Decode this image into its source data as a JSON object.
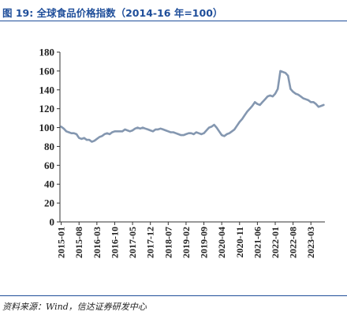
{
  "figure": {
    "title": "图 19:  全球食品价格指数（2014-16 年=100）",
    "source": "资料来源：Wind，信达证券研发中心"
  },
  "colors": {
    "accent": "#1f4e9a",
    "series": "#8497b0",
    "axis": "#333333"
  },
  "chart_data": {
    "type": "line",
    "title": "全球食品价格指数（2014-16 年=100）",
    "xlabel": "",
    "ylabel": "",
    "ylim": [
      0,
      180
    ],
    "yticks": [
      0,
      20,
      40,
      60,
      80,
      100,
      120,
      140,
      160,
      180
    ],
    "grid": false,
    "legend": "none",
    "x_tick_labels": [
      "2015-01",
      "2015-08",
      "2016-03",
      "2016-10",
      "2017-05",
      "2017-12",
      "2018-07",
      "2019-02",
      "2019-09",
      "2020-04",
      "2020-11",
      "2021-06",
      "2022-01",
      "2022-08",
      "2023-03"
    ],
    "series": [
      {
        "name": "",
        "x": [
          "2015-01",
          "2015-02",
          "2015-03",
          "2015-04",
          "2015-05",
          "2015-06",
          "2015-07",
          "2015-08",
          "2015-09",
          "2015-10",
          "2015-11",
          "2015-12",
          "2016-01",
          "2016-02",
          "2016-03",
          "2016-04",
          "2016-05",
          "2016-06",
          "2016-07",
          "2016-08",
          "2016-09",
          "2016-10",
          "2016-11",
          "2016-12",
          "2017-01",
          "2017-02",
          "2017-03",
          "2017-04",
          "2017-05",
          "2017-06",
          "2017-07",
          "2017-08",
          "2017-09",
          "2017-10",
          "2017-11",
          "2017-12",
          "2018-01",
          "2018-02",
          "2018-03",
          "2018-04",
          "2018-05",
          "2018-06",
          "2018-07",
          "2018-08",
          "2018-09",
          "2018-10",
          "2018-11",
          "2018-12",
          "2019-01",
          "2019-02",
          "2019-03",
          "2019-04",
          "2019-05",
          "2019-06",
          "2019-07",
          "2019-08",
          "2019-09",
          "2019-10",
          "2019-11",
          "2019-12",
          "2020-01",
          "2020-02",
          "2020-03",
          "2020-04",
          "2020-05",
          "2020-06",
          "2020-07",
          "2020-08",
          "2020-09",
          "2020-10",
          "2020-11",
          "2020-12",
          "2021-01",
          "2021-02",
          "2021-03",
          "2021-04",
          "2021-05",
          "2021-06",
          "2021-07",
          "2021-08",
          "2021-09",
          "2021-10",
          "2021-11",
          "2021-12",
          "2022-01",
          "2022-02",
          "2022-03",
          "2022-04",
          "2022-05",
          "2022-06",
          "2022-07",
          "2022-08",
          "2022-09",
          "2022-10",
          "2022-11",
          "2022-12",
          "2023-01",
          "2023-02",
          "2023-03",
          "2023-04",
          "2023-05",
          "2023-06",
          "2023-07",
          "2023-08"
        ],
        "values": [
          101,
          99,
          96,
          95,
          94,
          94,
          93,
          89,
          88,
          89,
          87,
          87,
          85,
          86,
          88,
          90,
          91,
          93,
          94,
          93,
          95,
          96,
          96,
          96,
          96,
          98,
          97,
          96,
          97,
          99,
          100,
          99,
          100,
          99,
          98,
          97,
          96,
          98,
          98,
          99,
          98,
          97,
          96,
          95,
          95,
          94,
          93,
          92,
          92,
          93,
          94,
          94,
          93,
          95,
          94,
          93,
          94,
          97,
          100,
          101,
          103,
          100,
          96,
          92,
          91,
          93,
          94,
          96,
          98,
          102,
          106,
          109,
          113,
          117,
          120,
          123,
          127,
          125,
          124,
          127,
          130,
          133,
          134,
          133,
          136,
          141,
          160,
          159,
          158,
          155,
          141,
          138,
          136,
          135,
          133,
          131,
          130,
          129,
          127,
          127,
          125,
          122,
          123,
          124
        ]
      }
    ]
  }
}
